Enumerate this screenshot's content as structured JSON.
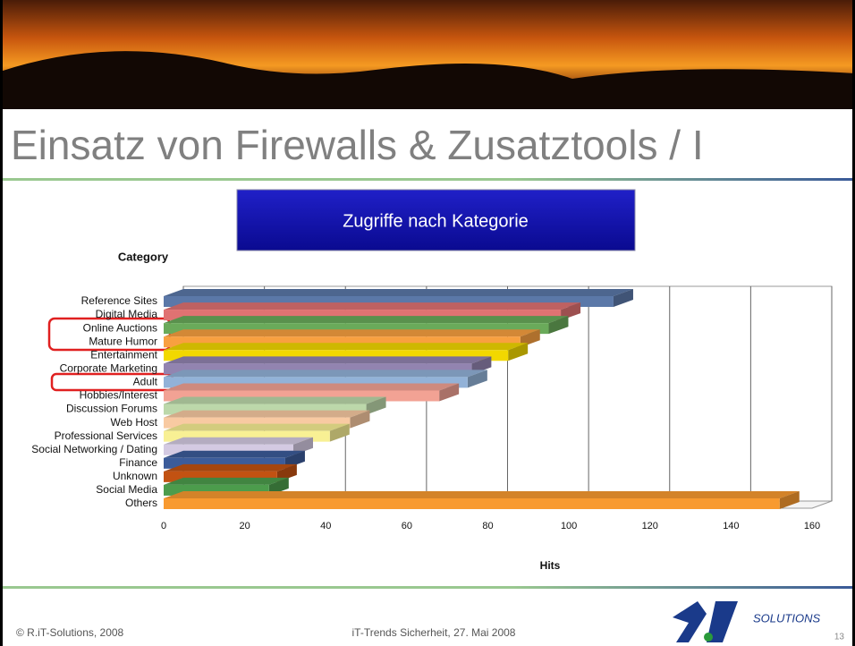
{
  "slide": {
    "title": "Einsatz von Firewalls & Zusatztools / I",
    "box_title": "Zugriffe nach Kategorie",
    "footer_left": "© R.iT-Solutions, 2008",
    "footer_center": "iT-Trends Sicherheit, 27. Mai 2008",
    "logo": "SOLUTIONS",
    "page_number": "13"
  },
  "chart_data": {
    "type": "bar",
    "orientation": "horizontal",
    "ylabel": "Category",
    "xlabel": "Hits",
    "categories": [
      "Reference Sites",
      "Digital Media",
      "Online Auctions",
      "Mature Humor",
      "Entertainment",
      "Corporate Marketing",
      "Adult",
      "Hobbies/Interest",
      "Discussion Forums",
      "Web Host",
      "Professional Services",
      "Social Networking / Dating",
      "Finance",
      "Unknown",
      "Social Media",
      "Others"
    ],
    "values": [
      111,
      98,
      95,
      88,
      85,
      76,
      75,
      68,
      50,
      46,
      41,
      32,
      30,
      28,
      26,
      152
    ],
    "colors": [
      "#5b78a8",
      "#e07272",
      "#6aaa5a",
      "#f8a040",
      "#f2d800",
      "#9284b0",
      "#92b2d8",
      "#f2a294",
      "#bcd8aa",
      "#f8caa2",
      "#f8f094",
      "#d4cae2",
      "#3c5c9a",
      "#c25212",
      "#4c9c4c",
      "#f89a30"
    ],
    "xlim": [
      0,
      160
    ],
    "xticks": [
      0,
      20,
      40,
      60,
      80,
      100,
      120,
      140,
      160
    ],
    "grid": true
  }
}
